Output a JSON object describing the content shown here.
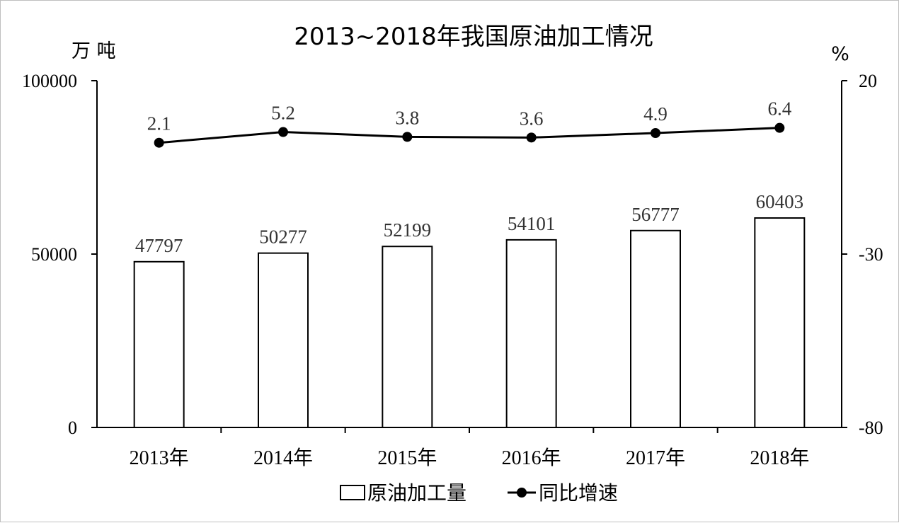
{
  "chart_data": {
    "type": "bar",
    "title": "2013~2018年我国原油加工情况",
    "categories": [
      "2013年",
      "2014年",
      "2015年",
      "2016年",
      "2017年",
      "2018年"
    ],
    "series": [
      {
        "name": "原油加工量",
        "type": "bar",
        "axis": "left",
        "values": [
          47797,
          50277,
          52199,
          54101,
          56777,
          60403
        ],
        "labels": [
          "47797",
          "50277",
          "52199",
          "54101",
          "56777",
          "60403"
        ]
      },
      {
        "name": "同比增速",
        "type": "line",
        "axis": "right",
        "values": [
          2.1,
          5.2,
          3.8,
          3.6,
          4.9,
          6.4
        ],
        "labels": [
          "2.1",
          "5.2",
          "3.8",
          "3.6",
          "4.9",
          "6.4"
        ]
      }
    ],
    "y_left": {
      "unit": "万 吨",
      "ylim": [
        0,
        100000
      ],
      "ticks": [
        "0",
        "50000",
        "100000"
      ]
    },
    "y_right": {
      "unit": "%",
      "ylim": [
        -80,
        20
      ],
      "ticks": [
        "-80",
        "-30",
        "20"
      ]
    },
    "grid": false,
    "legend": "bottom"
  }
}
